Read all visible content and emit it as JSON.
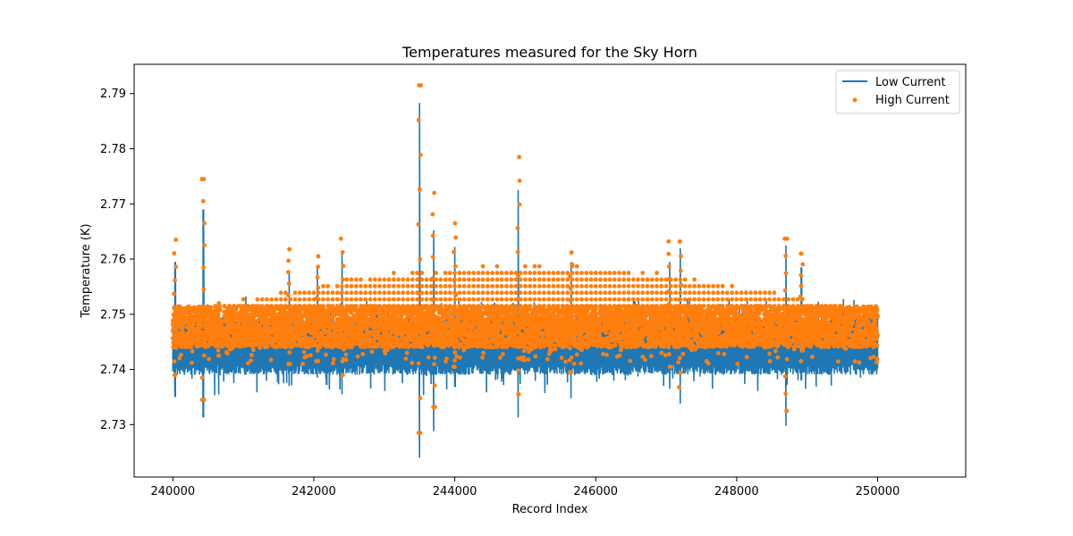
{
  "chart_data": {
    "type": "line+scatter",
    "title": "Temperatures measured for the Sky Horn",
    "xlabel": "Record Index",
    "ylabel": "Temperature (K)",
    "xlim": [
      239450,
      251250
    ],
    "ylim": [
      2.7205,
      2.7953
    ],
    "xticks": [
      240000,
      242000,
      244000,
      246000,
      248000,
      250000
    ],
    "yticks": [
      2.73,
      2.74,
      2.75,
      2.76,
      2.77,
      2.78,
      2.79
    ],
    "ytick_labels": [
      "2.73",
      "2.74",
      "2.75",
      "2.76",
      "2.77",
      "2.78",
      "2.79"
    ],
    "legend_position": "top-right",
    "series": [
      {
        "name": "Low Current",
        "kind": "line",
        "color": "#1f77b4",
        "baseline": 2.7445,
        "noise_band": [
          2.741,
          2.748
        ]
      },
      {
        "name": "High Current",
        "kind": "scatter",
        "color": "#ff7f0e",
        "baseline": 2.7475,
        "noise_band": [
          2.744,
          2.7515
        ]
      }
    ],
    "spikes": [
      {
        "x": 240030,
        "low_max": 2.7595,
        "low_min": 2.735,
        "high_max": 2.7635,
        "high_min": 2.739
      },
      {
        "x": 240430,
        "low_max": 2.769,
        "low_min": 2.7313,
        "high_max": 2.7745,
        "high_min": 2.7345
      },
      {
        "x": 240650,
        "low_max": 2.751,
        "low_min": 2.7355,
        "high_max": 2.752,
        "high_min": 2.7425
      },
      {
        "x": 241650,
        "low_max": 2.7575,
        "low_min": 2.737,
        "high_max": 2.7618,
        "high_min": 2.741
      },
      {
        "x": 242050,
        "low_max": 2.7585,
        "low_min": 2.7385,
        "high_max": 2.7605,
        "high_min": 2.7415
      },
      {
        "x": 242400,
        "low_max": 2.761,
        "low_min": 2.7355,
        "high_max": 2.7637,
        "high_min": 2.739
      },
      {
        "x": 243500,
        "low_max": 2.7883,
        "low_min": 2.724,
        "high_max": 2.7915,
        "high_min": 2.7285
      },
      {
        "x": 243700,
        "low_max": 2.7652,
        "low_min": 2.7288,
        "high_max": 2.772,
        "high_min": 2.7332
      },
      {
        "x": 244000,
        "low_max": 2.7622,
        "low_min": 2.7368,
        "high_max": 2.7665,
        "high_min": 2.7405
      },
      {
        "x": 244900,
        "low_max": 2.7725,
        "low_min": 2.7313,
        "high_max": 2.7785,
        "high_min": 2.7355
      },
      {
        "x": 245650,
        "low_max": 2.7595,
        "low_min": 2.7348,
        "high_max": 2.7612,
        "high_min": 2.7395
      },
      {
        "x": 247050,
        "low_max": 2.7595,
        "low_min": 2.7365,
        "high_max": 2.7632,
        "high_min": 2.7405
      },
      {
        "x": 247200,
        "low_max": 2.762,
        "low_min": 2.7338,
        "high_max": 2.7632,
        "high_min": 2.7368
      },
      {
        "x": 248700,
        "low_max": 2.7625,
        "low_min": 2.7298,
        "high_max": 2.7637,
        "high_min": 2.7325
      },
      {
        "x": 248920,
        "low_max": 2.7585,
        "low_min": 2.738,
        "high_max": 2.761,
        "high_min": 2.7415
      }
    ]
  }
}
